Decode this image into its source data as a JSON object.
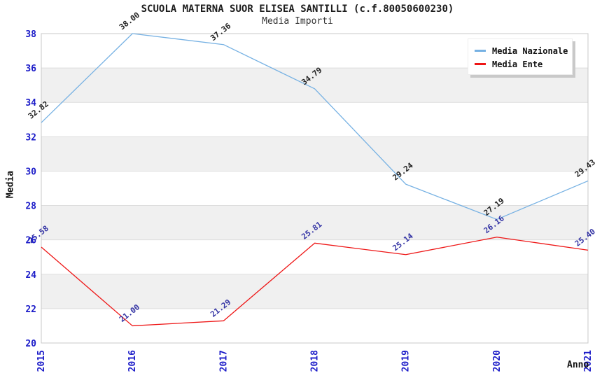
{
  "title": "SCUOLA MATERNA SUOR ELISEA SANTILLI (c.f.80050600230)",
  "subtitle": "Media Importi",
  "chart_data": {
    "type": "line",
    "title": "SCUOLA MATERNA SUOR ELISEA SANTILLI (c.f.80050600230)",
    "subtitle": "Media Importi",
    "xlabel": "Anno",
    "ylabel": "Media",
    "categories": [
      "2015",
      "2016",
      "2017",
      "2018",
      "2019",
      "2020",
      "2021"
    ],
    "ylim": [
      20,
      38
    ],
    "ytick_step": 2,
    "grid": "horizontal gridlines every 2 units with alternating light-gray bands",
    "legend_position": "top-right",
    "series": [
      {
        "name": "Media Nazionale",
        "color": "#76b1e3",
        "label_color": "#1f1f1f",
        "values": [
          32.82,
          38.0,
          37.36,
          34.79,
          29.24,
          27.19,
          29.43
        ],
        "point_labels": [
          "32.82",
          "38.00",
          "37.36",
          "34.79",
          "29.24",
          "27.19",
          "29.43"
        ]
      },
      {
        "name": "Media Ente",
        "color": "#ee1616",
        "label_color": "#3434a4",
        "values": [
          25.58,
          21.0,
          21.29,
          25.81,
          25.14,
          26.16,
          25.4
        ],
        "point_labels": [
          "25.58",
          "21.00",
          "21.29",
          "25.81",
          "25.14",
          "26.16",
          "25.40"
        ]
      }
    ],
    "colors": {
      "band": "#f0f0f0",
      "gridline": "#dddddd",
      "plot_border": "#c8c8c8",
      "axis_tick_label": "#1b1bc8",
      "title_text": "#1c1c1c"
    }
  }
}
